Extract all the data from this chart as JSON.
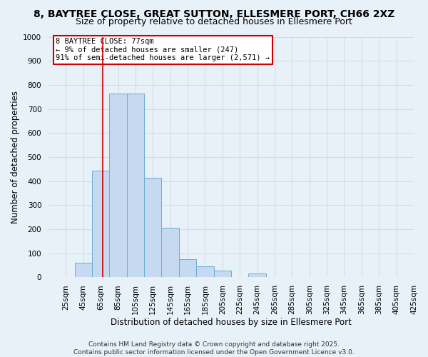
{
  "title": "8, BAYTREE CLOSE, GREAT SUTTON, ELLESMERE PORT, CH66 2XZ",
  "subtitle": "Size of property relative to detached houses in Ellesmere Port",
  "xlabel": "Distribution of detached houses by size in Ellesmere Port",
  "ylabel": "Number of detached properties",
  "bin_left_edges": [
    25,
    45,
    65,
    85,
    105,
    125,
    145,
    165,
    185,
    205,
    225,
    245,
    265,
    285,
    305,
    325,
    345,
    365,
    385,
    405
  ],
  "bar_heights": [
    0,
    60,
    445,
    765,
    765,
    415,
    205,
    75,
    47,
    28,
    0,
    15,
    0,
    0,
    0,
    0,
    0,
    0,
    0,
    0
  ],
  "xtick_labels": [
    "25sqm",
    "45sqm",
    "65sqm",
    "85sqm",
    "105sqm",
    "125sqm",
    "145sqm",
    "165sqm",
    "185sqm",
    "205sqm",
    "225sqm",
    "245sqm",
    "265sqm",
    "285sqm",
    "305sqm",
    "325sqm",
    "345sqm",
    "365sqm",
    "385sqm",
    "405sqm",
    "425sqm"
  ],
  "bar_color": "#c5d9f0",
  "bar_edge_color": "#6baed6",
  "vline_x": 77,
  "vline_color": "#cc0000",
  "annotation_text_line1": "8 BAYTREE CLOSE: 77sqm",
  "annotation_text_line2": "← 9% of detached houses are smaller (247)",
  "annotation_text_line3": "91% of semi-detached houses are larger (2,571) →",
  "annotation_box_edgecolor": "#cc0000",
  "annotation_box_facecolor": "#ffffff",
  "xlim_left": 15,
  "xlim_right": 435,
  "ylim": [
    0,
    1000
  ],
  "yticks": [
    0,
    100,
    200,
    300,
    400,
    500,
    600,
    700,
    800,
    900,
    1000
  ],
  "grid_color": "#c8d8ea",
  "background_color": "#e8f0f8",
  "footer_line1": "Contains HM Land Registry data © Crown copyright and database right 2025.",
  "footer_line2": "Contains public sector information licensed under the Open Government Licence v3.0.",
  "title_fontsize": 10,
  "subtitle_fontsize": 9,
  "xlabel_fontsize": 8.5,
  "ylabel_fontsize": 8.5,
  "tick_fontsize": 7.5,
  "annotation_fontsize": 7.5,
  "footer_fontsize": 6.5
}
